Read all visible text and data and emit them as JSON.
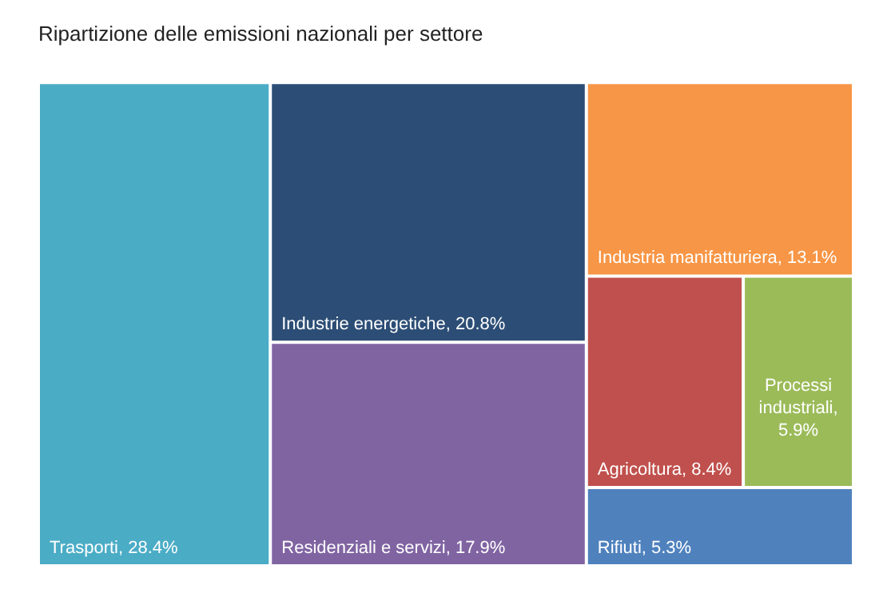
{
  "chart_data": {
    "type": "other",
    "title": "Ripartizione delle emissioni nazionali per settore",
    "categories": [
      "Trasporti",
      "Industrie energetiche",
      "Residenziali e servizi",
      "Industria manifatturiera",
      "Agricoltura",
      "Processi industriali",
      "Rifiuti"
    ],
    "values": [
      28.4,
      20.8,
      17.9,
      13.1,
      8.4,
      5.9,
      5.3
    ],
    "value_labels": [
      ", 28.4%",
      ", 20.8%",
      ", 17.9%",
      ", 13.1%",
      ", 8.4%",
      ", 5.9%",
      ", 5.3%"
    ],
    "colors": [
      "#4bacc6",
      "#2c4d75",
      "#8064a2",
      "#f79646",
      "#c0504d",
      "#9bbb59",
      "#4f81bd"
    ]
  }
}
